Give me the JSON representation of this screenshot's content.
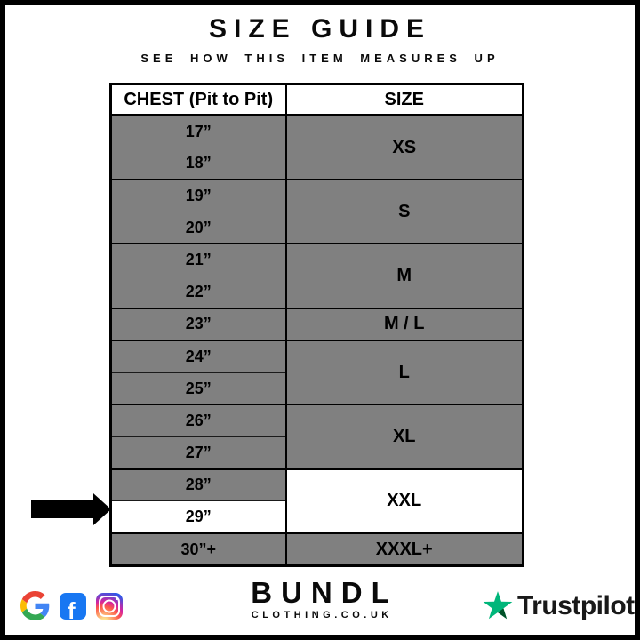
{
  "header": {
    "title": "SIZE GUIDE",
    "subtitle": "SEE HOW THIS ITEM MEASURES UP"
  },
  "table": {
    "columns": [
      "CHEST (Pit to Pit)",
      "SIZE"
    ],
    "groups": [
      {
        "size": "XS",
        "chests": [
          "17”",
          "18”"
        ]
      },
      {
        "size": "S",
        "chests": [
          "19”",
          "20”"
        ]
      },
      {
        "size": "M",
        "chests": [
          "21”",
          "22”"
        ]
      },
      {
        "size": "M / L",
        "chests": [
          "23”"
        ]
      },
      {
        "size": "L",
        "chests": [
          "24”",
          "25”"
        ]
      },
      {
        "size": "XL",
        "chests": [
          "26”",
          "27”"
        ]
      },
      {
        "size": "XXL",
        "chests": [
          "28”",
          "29”"
        ],
        "highlighted": true,
        "highlighted_chests": [
          "29”"
        ]
      },
      {
        "size": "XXXL+",
        "chests": [
          "30”+"
        ]
      }
    ]
  },
  "arrow": {
    "target_chest": "29”"
  },
  "footer": {
    "brand_name": "BUNDL",
    "brand_domain": "CLOTHING.CO.UK",
    "facebook_glyph": "f",
    "trustpilot_label": "Trustpilot",
    "social_icons": [
      "google",
      "facebook",
      "instagram"
    ]
  },
  "colors": {
    "row_gray": "#808080",
    "highlight_white": "#ffffff",
    "border_black": "#000000",
    "facebook_blue": "#1877F2",
    "trustpilot_green": "#00B67A",
    "trustpilot_dark_green": "#005128",
    "google_blue": "#4285F4",
    "google_red": "#EA4335",
    "google_yellow": "#FBBC05",
    "google_green": "#34A853"
  },
  "chart_data": {
    "type": "table",
    "title": "SIZE GUIDE",
    "columns": [
      "CHEST (Pit to Pit)",
      "SIZE"
    ],
    "rows": [
      [
        "17”",
        "XS"
      ],
      [
        "18”",
        "XS"
      ],
      [
        "19”",
        "S"
      ],
      [
        "20”",
        "S"
      ],
      [
        "21”",
        "M"
      ],
      [
        "22”",
        "M"
      ],
      [
        "23”",
        "M / L"
      ],
      [
        "24”",
        "L"
      ],
      [
        "25”",
        "L"
      ],
      [
        "26”",
        "XL"
      ],
      [
        "27”",
        "XL"
      ],
      [
        "28”",
        "XXL"
      ],
      [
        "29”",
        "XXL"
      ],
      [
        "30”+",
        "XXXL+"
      ]
    ]
  }
}
